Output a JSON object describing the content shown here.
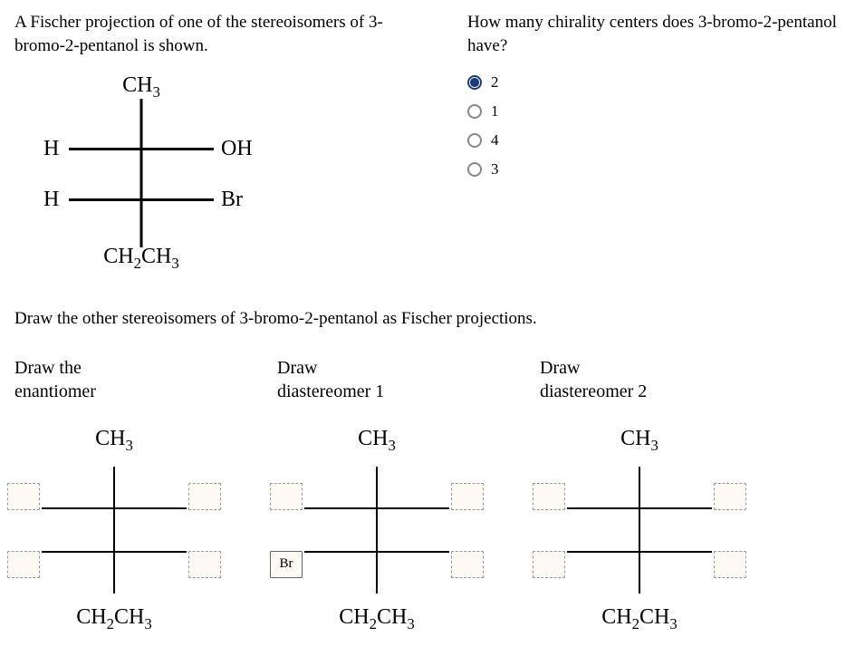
{
  "intro": "A Fischer projection of one of the stereoisomers of 3-bromo-2-pentanol is shown.",
  "question": "How many chirality centers does 3-bromo-2-pentanol have?",
  "options": [
    "2",
    "1",
    "4",
    "3"
  ],
  "selected_option": 0,
  "given": {
    "top": "CH",
    "top_sub": "3",
    "r1_left": "H",
    "r1_right": "OH",
    "r2_left": "H",
    "r2_right": "Br",
    "bottom_a": "CH",
    "bottom_sub1": "2",
    "bottom_b": "CH",
    "bottom_sub2": "3"
  },
  "draw_intro": "Draw the other stereoisomers of 3-bromo-2-pentanol as Fischer projections.",
  "columns": [
    {
      "title1": "Draw the",
      "title2": "enantiomer",
      "boxes": {
        "r1_left": "",
        "r1_right": "",
        "r2_left": "",
        "r2_right": ""
      }
    },
    {
      "title1": "Draw",
      "title2": "diastereomer 1",
      "boxes": {
        "r1_left": "",
        "r1_right": "",
        "r2_left": "Br",
        "r2_right": ""
      }
    },
    {
      "title1": "Draw",
      "title2": "diastereomer 2",
      "boxes": {
        "r1_left": "",
        "r1_right": "",
        "r2_left": "",
        "r2_right": ""
      }
    }
  ],
  "skeleton": {
    "top": "CH",
    "top_sub": "3",
    "bottom_a": "CH",
    "bottom_sub1": "2",
    "bottom_b": "CH",
    "bottom_sub2": "3"
  },
  "colors": {
    "radio_selected": "#1a3a7a",
    "radio_border": "#888888",
    "box_border": "#999999",
    "box_background": "#fdfaf5",
    "line_color": "#000000",
    "background": "#ffffff"
  }
}
